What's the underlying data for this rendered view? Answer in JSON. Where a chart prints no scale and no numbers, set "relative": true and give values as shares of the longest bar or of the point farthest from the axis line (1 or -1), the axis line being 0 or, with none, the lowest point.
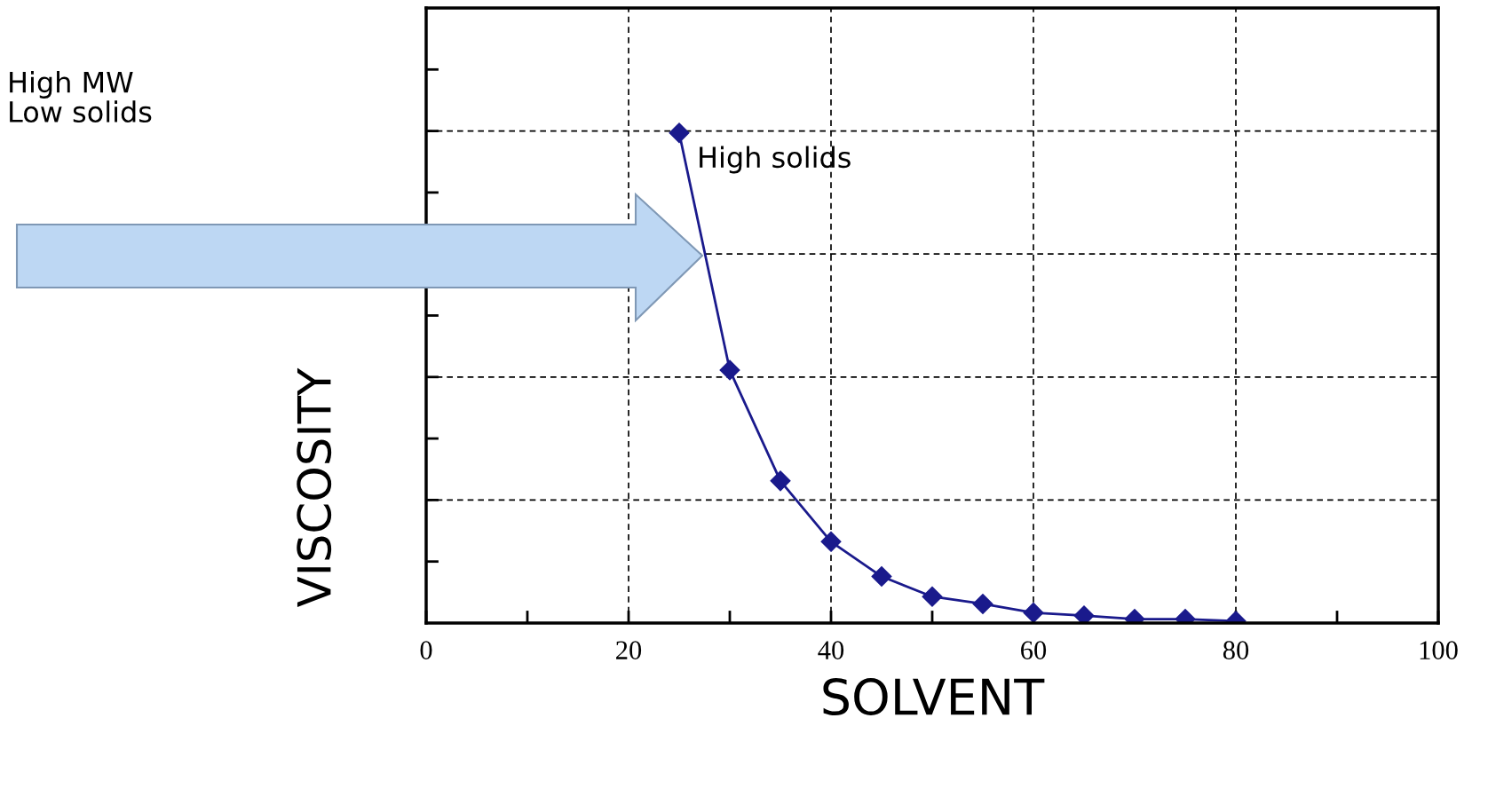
{
  "chart_data": {
    "type": "line",
    "xlabel": "SOLVENT",
    "ylabel": "VISCOSITY",
    "x": [
      25,
      30,
      35,
      40,
      45,
      50,
      55,
      60,
      65,
      70,
      75,
      80
    ],
    "series": [
      {
        "color": "#1a1a8c",
        "values": [
          1,
          0.516,
          0.29,
          0.166,
          0.095,
          0.054,
          0.039,
          0.021,
          0.015,
          0.008,
          0.008,
          0.004
        ]
      }
    ],
    "relative": true,
    "xlim": [
      0,
      100
    ],
    "xticks": [
      0,
      20,
      40,
      60,
      80,
      100
    ],
    "grid": true,
    "marker": "diamond",
    "line_style": "solid",
    "annotations": [
      "High MW\nLow solids",
      "High solids"
    ]
  }
}
